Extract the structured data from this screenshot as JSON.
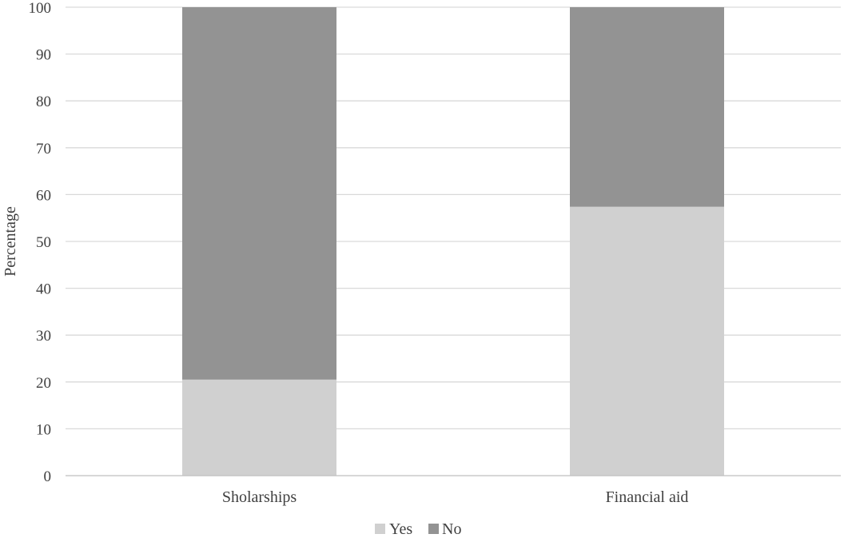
{
  "chart_data": {
    "type": "bar",
    "stacked": true,
    "categories": [
      "Sholarships",
      "Financial aid"
    ],
    "series": [
      {
        "name": "Yes",
        "values": [
          20.5,
          57.4
        ],
        "color": "#d0d0d0"
      },
      {
        "name": "No",
        "values": [
          79.5,
          42.6
        ],
        "color": "#939393"
      }
    ],
    "title": "",
    "xlabel": "",
    "ylabel": "Percentage",
    "ylim": [
      0,
      100
    ],
    "yticks": [
      0,
      10,
      20,
      30,
      40,
      50,
      60,
      70,
      80,
      90,
      100
    ],
    "grid": true,
    "legend_position": "bottom"
  }
}
